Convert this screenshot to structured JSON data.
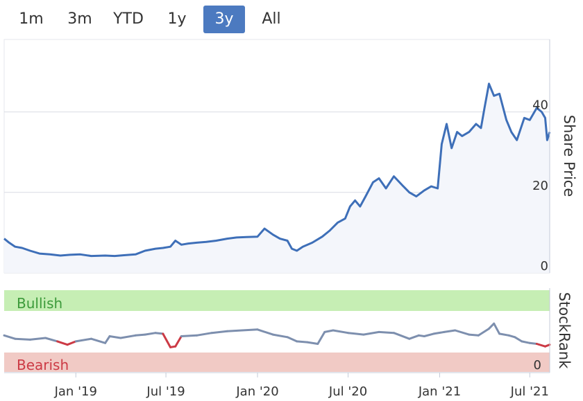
{
  "range_selector": {
    "buttons": [
      {
        "label": "1m",
        "active": false
      },
      {
        "label": "3m",
        "active": false
      },
      {
        "label": "YTD",
        "active": false
      },
      {
        "label": "1y",
        "active": false
      },
      {
        "label": "3y",
        "active": true
      },
      {
        "label": "All",
        "active": false
      }
    ]
  },
  "colors": {
    "price_line": "#3e6fb8",
    "price_fill": "#f4f6fb",
    "grid": "#d9dbe3",
    "axis": "#c5cbd8",
    "bullish_band": "#c6eeb4",
    "bearish_band": "#f1cac5",
    "rank_line": "#7d8fae",
    "rank_bearish_line": "#cc3a45",
    "bullish_text": "#3c9a3a",
    "bearish_text": "#cc3a45"
  },
  "chart_data": [
    {
      "type": "line",
      "ylabel": "Share Price",
      "ylim": [
        0,
        58
      ],
      "yticks": [
        0,
        20,
        40
      ],
      "xlim": [
        "2018-08-10",
        "2021-08-10"
      ],
      "grid": true,
      "series": [
        {
          "x": [
            "2018-08-10",
            "2018-08-20",
            "2018-09-01",
            "2018-09-15",
            "2018-10-01",
            "2018-10-20",
            "2018-11-10",
            "2018-12-01",
            "2018-12-20",
            "2019-01-10",
            "2019-02-01",
            "2019-03-01",
            "2019-03-20",
            "2019-04-10",
            "2019-05-01",
            "2019-05-20",
            "2019-06-10",
            "2019-06-25",
            "2019-07-10",
            "2019-07-20",
            "2019-08-01",
            "2019-08-15",
            "2019-09-01",
            "2019-09-20",
            "2019-10-10",
            "2019-11-01",
            "2019-11-20",
            "2019-12-10",
            "2020-01-01",
            "2020-01-15",
            "2020-02-01",
            "2020-02-15",
            "2020-03-01",
            "2020-03-10",
            "2020-03-20",
            "2020-04-01",
            "2020-04-20",
            "2020-05-10",
            "2020-05-25",
            "2020-06-10",
            "2020-06-25",
            "2020-07-05",
            "2020-07-15",
            "2020-07-25",
            "2020-08-05",
            "2020-08-20",
            "2020-09-01",
            "2020-09-15",
            "2020-10-01",
            "2020-10-20",
            "2020-11-01",
            "2020-11-15",
            "2020-12-01",
            "2020-12-15",
            "2020-12-28",
            "2021-01-05",
            "2021-01-15",
            "2021-01-25",
            "2021-02-05",
            "2021-02-15",
            "2021-03-01",
            "2021-03-15",
            "2021-03-25",
            "2021-04-01",
            "2021-04-10",
            "2021-04-20",
            "2021-05-01",
            "2021-05-15",
            "2021-05-25",
            "2021-06-05",
            "2021-06-20",
            "2021-07-01",
            "2021-07-15",
            "2021-07-25",
            "2021-08-01",
            "2021-08-05",
            "2021-08-10"
          ],
          "y": [
            8.5,
            7.5,
            6.5,
            6.2,
            5.5,
            4.8,
            4.6,
            4.3,
            4.5,
            4.6,
            4.2,
            4.3,
            4.2,
            4.4,
            4.6,
            5.5,
            6.0,
            6.2,
            6.5,
            8.0,
            7.0,
            7.3,
            7.5,
            7.7,
            8.0,
            8.5,
            8.8,
            8.9,
            9.0,
            11.0,
            9.5,
            8.5,
            8.0,
            6.0,
            5.5,
            6.5,
            7.5,
            9.0,
            10.5,
            12.5,
            13.5,
            16.5,
            18.0,
            16.5,
            19.0,
            22.5,
            23.5,
            21.0,
            24.0,
            21.5,
            20.0,
            19.0,
            20.5,
            21.5,
            21.0,
            32.0,
            37.0,
            31.0,
            35.0,
            34.0,
            35.0,
            37.0,
            36.0,
            41.0,
            47.0,
            44.0,
            44.5,
            38.0,
            35.0,
            33.0,
            38.5,
            38.0,
            41.0,
            40.0,
            38.5,
            33.0,
            35.0
          ]
        }
      ]
    },
    {
      "type": "line",
      "ylabel": "StockRank",
      "ylim": [
        0,
        100
      ],
      "ytick_labels": [
        "0"
      ],
      "band_labels": [
        "Bullish",
        "Bearish"
      ],
      "xtick_labels": [
        "Jan '19",
        "Jul '19",
        "Jan '20",
        "Jul '20",
        "Jan '21",
        "Jul '21"
      ],
      "xticks": [
        "2019-01-01",
        "2019-07-01",
        "2020-01-01",
        "2020-07-01",
        "2021-01-01",
        "2021-07-01"
      ],
      "series": [
        {
          "x": [
            "2018-08-10",
            "2018-09-01",
            "2018-10-01",
            "2018-11-01",
            "2018-11-25",
            "2018-12-15",
            "2019-01-01",
            "2019-02-01",
            "2019-03-01",
            "2019-03-10",
            "2019-04-01",
            "2019-05-01",
            "2019-05-20",
            "2019-06-10",
            "2019-06-25",
            "2019-07-10",
            "2019-07-20",
            "2019-08-01",
            "2019-09-01",
            "2019-10-01",
            "2019-11-01",
            "2019-12-01",
            "2020-01-01",
            "2020-02-01",
            "2020-03-01",
            "2020-03-20",
            "2020-04-10",
            "2020-05-01",
            "2020-05-15",
            "2020-06-01",
            "2020-07-01",
            "2020-08-01",
            "2020-09-01",
            "2020-10-01",
            "2020-11-01",
            "2020-11-20",
            "2020-12-01",
            "2020-12-20",
            "2021-01-10",
            "2021-02-01",
            "2021-03-01",
            "2021-03-20",
            "2021-04-10",
            "2021-04-20",
            "2021-05-01",
            "2021-05-20",
            "2021-06-01",
            "2021-06-15",
            "2021-07-01",
            "2021-07-15",
            "2021-08-01",
            "2021-08-10"
          ],
          "y": [
            44,
            40,
            39,
            41,
            37,
            33,
            37,
            40,
            35,
            43,
            41,
            44,
            45,
            47,
            46,
            30,
            31,
            43,
            44,
            47,
            49,
            50,
            51,
            45,
            42,
            37,
            36,
            34,
            48,
            50,
            47,
            45,
            48,
            47,
            40,
            44,
            43,
            46,
            48,
            50,
            45,
            44,
            52,
            58,
            46,
            44,
            42,
            37,
            35,
            34,
            31,
            33
          ]
        }
      ]
    }
  ]
}
